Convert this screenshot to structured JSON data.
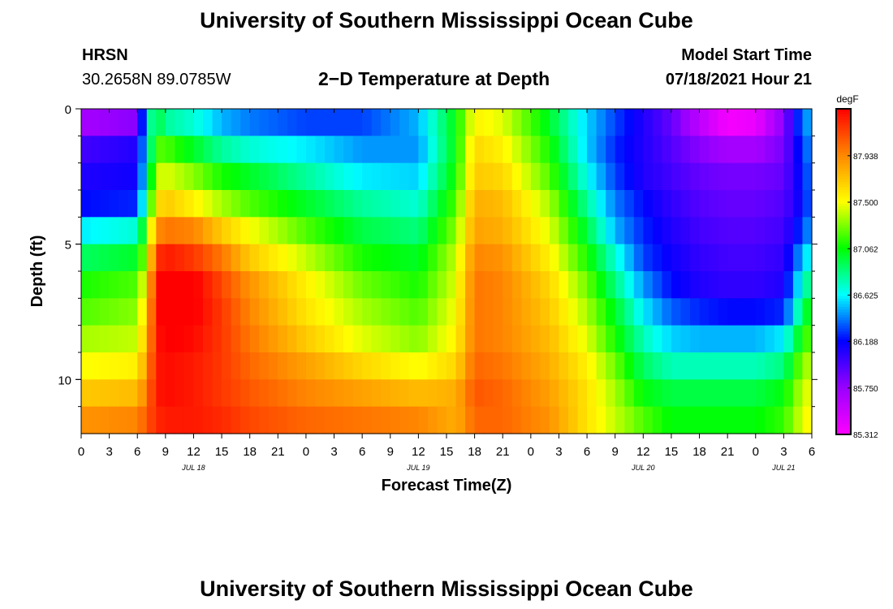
{
  "header": {
    "title": "University of Southern Mississippi Ocean Cube",
    "station": "HRSN",
    "coords": "30.2658N  89.0785W",
    "plot_title": "2−D Temperature at Depth",
    "model_label": "Model Start Time",
    "model_time": "07/18/2021 Hour 21"
  },
  "footer": {
    "title": "University of Southern Mississippi Ocean Cube"
  },
  "colors": {
    "scale": [
      "#ff00ff",
      "#9900ff",
      "#0000ff",
      "#00ffff",
      "#00ff00",
      "#ffff00",
      "#ff8800",
      "#ff0000"
    ]
  },
  "chart_data": {
    "type": "heatmap",
    "title": "2−D Temperature at Depth",
    "xlabel": "Forecast Time(Z)",
    "ylabel": "Depth (ft)",
    "x_ticks": [
      "0",
      "3",
      "6",
      "9",
      "12",
      "15",
      "18",
      "21",
      "0",
      "3",
      "6",
      "9",
      "12",
      "15",
      "18",
      "21",
      "0",
      "3",
      "6",
      "9",
      "12",
      "15",
      "18",
      "21",
      "0",
      "3",
      "6"
    ],
    "date_labels": [
      {
        "label": "JUL 18",
        "hour": 12
      },
      {
        "label": "JUL 19",
        "hour": 36
      },
      {
        "label": "JUL 20",
        "hour": 60
      },
      {
        "label": "JUL 21",
        "hour": 75
      }
    ],
    "x_range_hours": [
      0,
      78
    ],
    "y_ticks": [
      0,
      5,
      10
    ],
    "ylim": [
      0,
      12
    ],
    "colorbar": {
      "unit": "degF",
      "ticks": [
        "85.312",
        "85.750",
        "86.188",
        "86.625",
        "87.062",
        "87.500",
        "87.938"
      ],
      "min": 85.312,
      "max": 88.38
    },
    "time_hours": [
      0,
      6,
      7,
      8,
      9,
      12,
      15,
      18,
      24,
      30,
      36,
      40,
      42,
      45,
      50,
      54,
      57,
      60,
      63,
      66,
      69,
      72,
      75,
      77,
      78
    ],
    "depth_ft": [
      0.5,
      1.5,
      2.5,
      3.5,
      4.5,
      5.5,
      6.5,
      7.5,
      8.5,
      9.5,
      10.5,
      11.5
    ],
    "temperature_degF": [
      [
        85.7,
        85.8,
        86.65,
        87.0,
        86.8,
        86.7,
        86.5,
        86.4,
        86.3,
        86.3,
        86.5,
        87.05,
        87.55,
        87.45,
        87.0,
        86.55,
        86.3,
        86.1,
        85.9,
        85.6,
        85.35,
        85.4,
        85.8,
        86.4,
        86.5
      ],
      [
        86.0,
        86.1,
        86.6,
        87.2,
        87.2,
        87.0,
        86.8,
        86.7,
        86.6,
        86.45,
        86.45,
        87.05,
        87.65,
        87.55,
        87.1,
        86.55,
        86.25,
        86.1,
        85.95,
        85.8,
        85.7,
        85.7,
        85.85,
        86.3,
        86.45
      ],
      [
        86.1,
        86.15,
        86.7,
        87.4,
        87.45,
        87.3,
        87.1,
        87.0,
        86.8,
        86.6,
        86.55,
        87.1,
        87.7,
        87.65,
        87.2,
        86.65,
        86.3,
        86.1,
        86.0,
        85.9,
        85.85,
        85.85,
        85.9,
        86.25,
        86.4
      ],
      [
        86.2,
        86.25,
        86.9,
        87.6,
        87.7,
        87.55,
        87.35,
        87.2,
        87.0,
        86.8,
        86.7,
        87.2,
        87.8,
        87.75,
        87.35,
        86.8,
        86.4,
        86.2,
        86.05,
        85.95,
        85.9,
        85.9,
        85.95,
        86.2,
        86.4
      ],
      [
        86.6,
        86.7,
        87.2,
        87.9,
        88.0,
        87.95,
        87.7,
        87.5,
        87.2,
        86.95,
        86.85,
        87.3,
        87.85,
        87.8,
        87.45,
        86.95,
        86.5,
        86.25,
        86.1,
        86.0,
        85.95,
        85.95,
        86.0,
        86.3,
        86.5
      ],
      [
        86.9,
        87.0,
        87.4,
        88.2,
        88.3,
        88.2,
        88.0,
        87.7,
        87.4,
        87.1,
        87.0,
        87.4,
        87.95,
        87.9,
        87.55,
        87.1,
        86.7,
        86.3,
        86.15,
        86.05,
        86.0,
        86.0,
        86.05,
        86.5,
        86.7
      ],
      [
        87.1,
        87.2,
        87.6,
        88.35,
        88.45,
        88.4,
        88.15,
        87.9,
        87.55,
        87.25,
        87.1,
        87.45,
        88.0,
        87.95,
        87.65,
        87.25,
        86.85,
        86.45,
        86.2,
        86.1,
        86.05,
        86.05,
        86.1,
        86.7,
        86.9
      ],
      [
        87.2,
        87.3,
        87.7,
        88.35,
        88.45,
        88.4,
        88.2,
        87.95,
        87.6,
        87.35,
        87.2,
        87.5,
        88.0,
        87.95,
        87.7,
        87.35,
        87.0,
        86.6,
        86.35,
        86.25,
        86.2,
        86.2,
        86.25,
        86.9,
        87.1
      ],
      [
        87.35,
        87.4,
        87.8,
        88.3,
        88.4,
        88.35,
        88.2,
        88.0,
        87.7,
        87.45,
        87.3,
        87.55,
        88.0,
        87.95,
        87.75,
        87.45,
        87.1,
        86.75,
        86.55,
        86.5,
        86.5,
        86.5,
        86.6,
        87.1,
        87.25
      ],
      [
        87.5,
        87.55,
        87.9,
        88.3,
        88.35,
        88.3,
        88.2,
        88.05,
        87.85,
        87.65,
        87.5,
        87.65,
        88.05,
        88.0,
        87.8,
        87.55,
        87.25,
        86.9,
        86.75,
        86.75,
        86.75,
        86.75,
        86.85,
        87.3,
        87.4
      ],
      [
        87.7,
        87.75,
        88.0,
        88.3,
        88.35,
        88.3,
        88.2,
        88.1,
        87.95,
        87.85,
        87.75,
        87.8,
        88.1,
        88.05,
        87.85,
        87.6,
        87.35,
        87.05,
        86.95,
        86.95,
        86.95,
        86.95,
        87.05,
        87.4,
        87.5
      ],
      [
        87.9,
        87.95,
        88.1,
        88.25,
        88.3,
        88.3,
        88.25,
        88.15,
        88.05,
        88.0,
        87.95,
        87.8,
        88.05,
        88.05,
        87.9,
        87.6,
        87.4,
        87.2,
        87.05,
        87.05,
        87.05,
        87.05,
        87.15,
        87.45,
        87.55
      ]
    ]
  }
}
